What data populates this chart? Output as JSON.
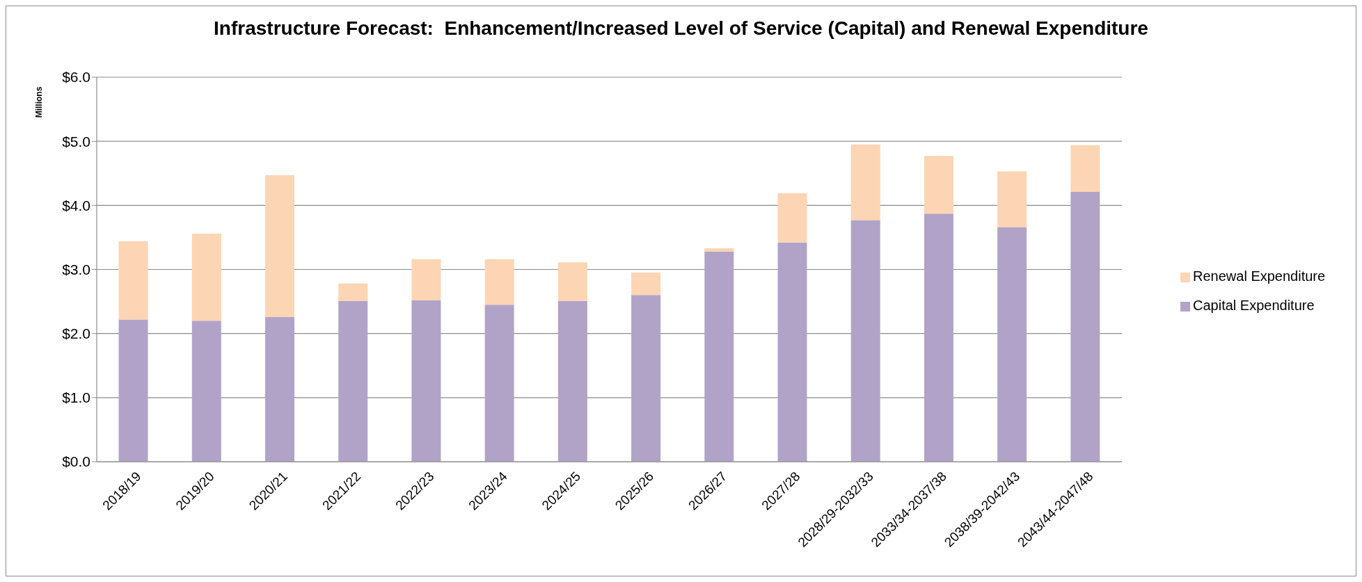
{
  "chart_data": {
    "type": "bar",
    "title": "Infrastructure Forecast:  Enhancement/Increased Level of Service (Capital) and Renewal Expenditure",
    "ylabel": "Millions",
    "categories": [
      "2018/19",
      "2019/20",
      "2020/21",
      "2021/22",
      "2022/23",
      "2023/24",
      "2024/25",
      "2025/26",
      "2026/27",
      "2027/28",
      "2028/29-2032/33",
      "2033/34-2037/38",
      "2038/39-2042/43",
      "2043/44-2047/48"
    ],
    "series": [
      {
        "name": "Capital Expenditure",
        "color": "#b1a3c7",
        "values": [
          2.22,
          2.2,
          2.26,
          2.51,
          2.52,
          2.45,
          2.51,
          2.6,
          3.28,
          3.42,
          3.77,
          3.87,
          3.66,
          4.21
        ]
      },
      {
        "name": "Renewal Expenditure",
        "color": "#fcd5b4",
        "values": [
          1.22,
          1.36,
          2.21,
          0.27,
          0.64,
          0.71,
          0.6,
          0.35,
          0.05,
          0.77,
          1.18,
          0.9,
          0.87,
          0.73
        ]
      }
    ],
    "stacked": true,
    "ylim": [
      0,
      6
    ],
    "yticks": [
      {
        "value": 0,
        "label": "$0.0"
      },
      {
        "value": 1,
        "label": "$1.0"
      },
      {
        "value": 2,
        "label": "$2.0"
      },
      {
        "value": 3,
        "label": "$3.0"
      },
      {
        "value": 4,
        "label": "$4.0"
      },
      {
        "value": 5,
        "label": "$5.0"
      },
      {
        "value": 6,
        "label": "$6.0"
      }
    ],
    "grid": "y",
    "legend": "right"
  }
}
